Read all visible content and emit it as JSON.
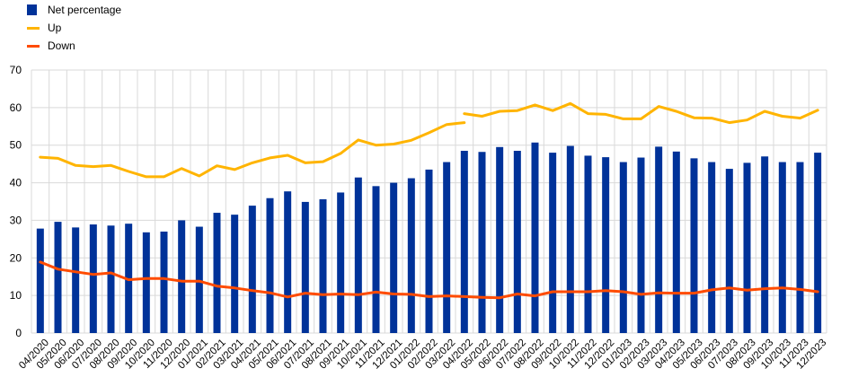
{
  "chart_data": {
    "type": "bar",
    "title": "",
    "xlabel": "",
    "ylabel": "",
    "ylim": [
      0,
      70
    ],
    "yticks": [
      0,
      10,
      20,
      30,
      40,
      50,
      60,
      70
    ],
    "grid": true,
    "legend_position": "top-left",
    "categories": [
      "04/2020",
      "05/2020",
      "06/2020",
      "07/2020",
      "08/2020",
      "09/2020",
      "10/2020",
      "11/2020",
      "12/2020",
      "01/2021",
      "02/2021",
      "03/2021",
      "04/2021",
      "05/2021",
      "06/2021",
      "07/2021",
      "08/2021",
      "09/2021",
      "10/2021",
      "11/2021",
      "12/2021",
      "01/2022",
      "02/2022",
      "03/2022",
      "04/2022",
      "05/2022",
      "06/2022",
      "07/2022",
      "08/2022",
      "09/2022",
      "10/2022",
      "11/2022",
      "12/2022",
      "01/2023",
      "02/2023",
      "03/2023",
      "04/2023",
      "05/2023",
      "06/2023",
      "07/2023",
      "08/2023",
      "09/2023",
      "10/2023",
      "11/2023",
      "12/2023"
    ],
    "series": [
      {
        "name": "Net percentage",
        "type": "bar",
        "color": "#003299",
        "values": [
          27.8,
          29.6,
          28.1,
          28.9,
          28.6,
          29.1,
          26.8,
          27.0,
          30.0,
          28.3,
          32.0,
          31.5,
          33.9,
          35.9,
          37.7,
          34.9,
          35.6,
          37.4,
          41.4,
          39.1,
          40.0,
          41.2,
          43.5,
          45.5,
          48.5,
          48.2,
          49.5,
          48.5,
          50.7,
          48.0,
          49.8,
          47.2,
          46.8,
          45.5,
          46.7,
          49.6,
          48.3,
          46.5,
          45.5,
          43.7,
          45.3,
          47.0,
          45.5,
          45.5,
          48.0
        ]
      },
      {
        "name": "Up",
        "type": "line",
        "color": "#FFB400",
        "values": [
          46.8,
          46.5,
          44.6,
          44.3,
          44.6,
          43.0,
          41.6,
          41.6,
          43.8,
          41.8,
          44.5,
          43.5,
          45.3,
          46.6,
          47.3,
          45.3,
          45.6,
          47.8,
          51.4,
          50.0,
          50.3,
          51.3,
          53.3,
          55.5,
          56.0,
          null,
          null,
          null,
          null,
          null,
          null,
          null,
          null,
          null,
          null,
          null,
          null,
          null,
          null,
          null,
          null,
          null,
          null,
          null,
          null
        ],
        "values_segment2": [
          null,
          null,
          null,
          null,
          null,
          null,
          null,
          null,
          null,
          null,
          null,
          null,
          null,
          null,
          null,
          null,
          null,
          null,
          null,
          null,
          null,
          null,
          null,
          null,
          58.4,
          57.7,
          59.0,
          59.2,
          60.7,
          59.2,
          61.1,
          58.4,
          58.2,
          57.0,
          57.0,
          60.3,
          59.0,
          57.3,
          57.2,
          56.0,
          56.7,
          59.0,
          57.7,
          57.2,
          59.3
        ]
      },
      {
        "name": "Down",
        "type": "line",
        "color": "#FF4B00",
        "values": [
          18.9,
          17.0,
          16.3,
          15.6,
          16.0,
          14.2,
          14.5,
          14.5,
          13.8,
          13.8,
          12.5,
          12.0,
          11.3,
          10.7,
          9.6,
          10.6,
          10.2,
          10.4,
          10.2,
          10.9,
          10.4,
          10.3,
          9.7,
          9.9,
          9.7,
          9.5,
          9.4,
          10.4,
          9.9,
          11.0,
          11.0,
          11.0,
          11.3,
          11.0,
          10.3,
          10.7,
          10.6,
          10.6,
          11.5,
          12.0,
          11.4,
          11.8,
          12.0,
          11.6,
          11.0
        ]
      }
    ]
  }
}
